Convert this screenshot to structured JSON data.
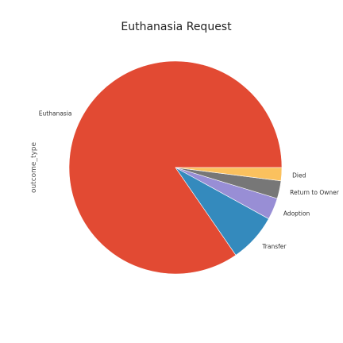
{
  "chart_data": {
    "type": "pie",
    "title": "Euthanasia Request",
    "ylabel": "outcome_type",
    "start_angle_deg": 0,
    "direction": "counterclockwise",
    "slices": [
      {
        "label": "Euthanasia",
        "value": 84.6,
        "color": "#e24a33"
      },
      {
        "label": "Transfer",
        "value": 7.4,
        "color": "#348abd"
      },
      {
        "label": "Adoption",
        "value": 3.3,
        "color": "#988ed5"
      },
      {
        "label": "Return to Owner",
        "value": 2.7,
        "color": "#777777"
      },
      {
        "label": "Died",
        "value": 2.0,
        "color": "#fbc15e"
      }
    ]
  }
}
